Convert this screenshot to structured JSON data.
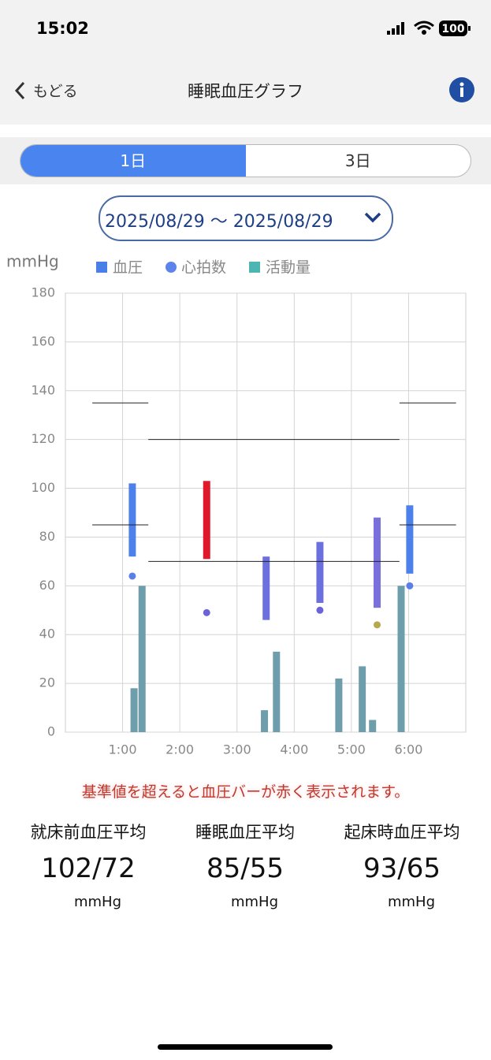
{
  "status_bar": {
    "time": "15:02",
    "battery": "100"
  },
  "nav": {
    "back": "もどる",
    "title": "睡眠血圧グラフ"
  },
  "tabs": {
    "items": [
      "1日",
      "3日"
    ],
    "selected": 0
  },
  "date_range": "2025/08/29 ～ 2025/08/29",
  "chart_data": {
    "type": "combo",
    "y_label": "mmHg",
    "xlim": [
      0,
      7
    ],
    "xticks": [
      {
        "value": 1,
        "label": "1:00"
      },
      {
        "value": 2,
        "label": "2:00"
      },
      {
        "value": 3,
        "label": "3:00"
      },
      {
        "value": 4,
        "label": "4:00"
      },
      {
        "value": 5,
        "label": "5:00"
      },
      {
        "value": 6,
        "label": "6:00"
      }
    ],
    "ylim": [
      0,
      180
    ],
    "yticks": [
      0,
      20,
      40,
      60,
      80,
      100,
      120,
      140,
      160,
      180
    ],
    "grid": true,
    "series": [
      {
        "name": "血圧",
        "type": "range",
        "color": "#4a7fe8",
        "x": [
          1.17,
          2.47,
          3.51,
          4.45,
          5.45,
          6.02
        ],
        "high": [
          102,
          103,
          72,
          78,
          88,
          93
        ],
        "low": [
          72,
          71,
          46,
          53,
          51,
          65
        ],
        "colors": [
          "#4c80ea",
          "#e0192a",
          "#6c70df",
          "#6c70df",
          "#7a70dc",
          "#4c80ea"
        ]
      },
      {
        "name": "心拍数",
        "type": "scatter",
        "color": "#5c84ea",
        "x": [
          1.17,
          2.47,
          4.45,
          5.45,
          6.02
        ],
        "values": [
          64,
          49,
          50,
          44,
          60
        ],
        "colors": [
          "#5b7fe6",
          "#6a64d8",
          "#6a64d8",
          "#b5a84e",
          "#5b7fe6"
        ]
      },
      {
        "name": "活動量",
        "type": "bar",
        "color": "#4db6b2",
        "mark_color": "#6e9dac",
        "x": [
          1.2,
          1.34,
          3.48,
          3.69,
          4.78,
          5.19,
          5.37,
          5.87
        ],
        "values": [
          18,
          60,
          9,
          33,
          22,
          27,
          5,
          60
        ]
      }
    ],
    "reference_lines": [
      {
        "y": 135,
        "x1": 0.47,
        "x2": 1.45
      },
      {
        "y": 85,
        "x1": 0.47,
        "x2": 1.45
      },
      {
        "y": 120,
        "x1": 1.45,
        "x2": 5.84
      },
      {
        "y": 70,
        "x1": 1.45,
        "x2": 5.84
      },
      {
        "y": 135,
        "x1": 5.84,
        "x2": 6.83
      },
      {
        "y": 85,
        "x1": 5.84,
        "x2": 6.83
      }
    ]
  },
  "notice": "基準値を超えると血圧バーが赤く表示されます。",
  "stats": [
    {
      "label": "就床前血圧平均",
      "value": "102/72",
      "unit": "mmHg"
    },
    {
      "label": "睡眠血圧平均",
      "value": "85/55",
      "unit": "mmHg"
    },
    {
      "label": "起床時血圧平均",
      "value": "93/65",
      "unit": "mmHg"
    }
  ]
}
